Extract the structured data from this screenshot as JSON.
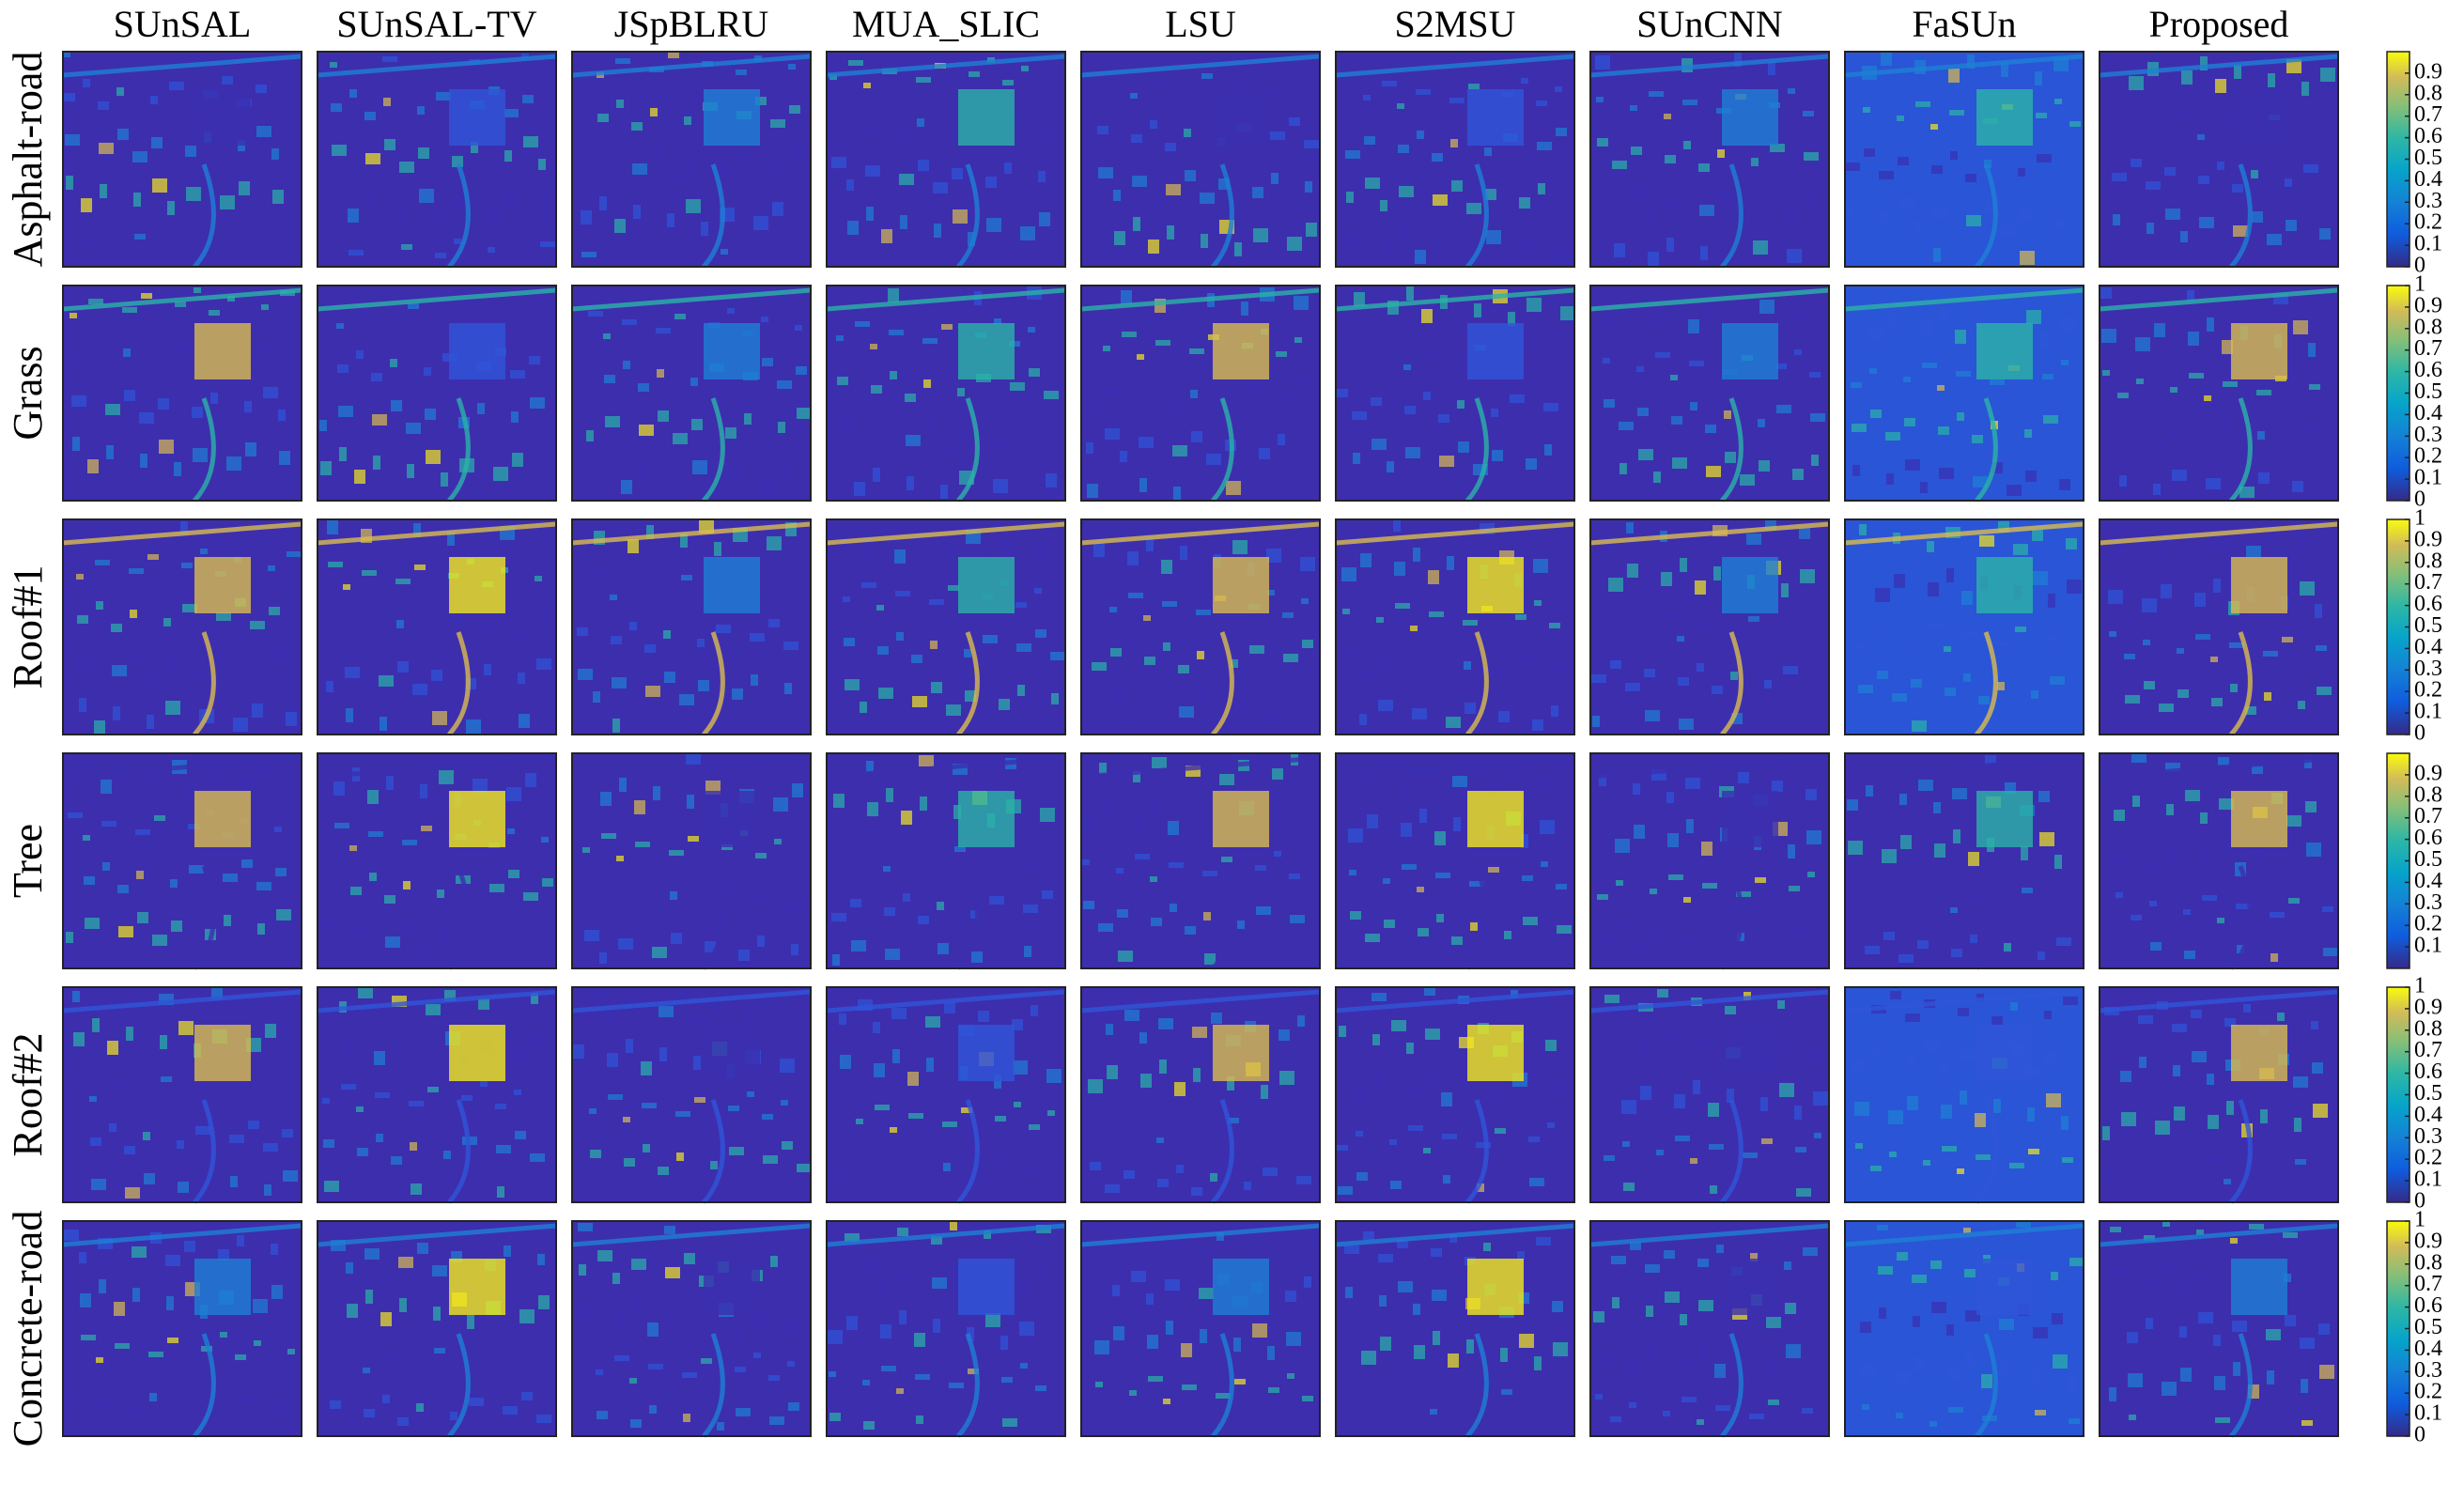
{
  "columns": [
    "SUnSAL",
    "SUnSAL-TV",
    "JSpBLRU",
    "MUA_SLIC",
    "LSU",
    "S2MSU",
    "SUnCNN",
    "FaSUn",
    "Proposed"
  ],
  "rows": [
    {
      "label": "Asphalt-road",
      "clim": [
        0,
        1
      ],
      "ticks": [
        0,
        0.1,
        0.2,
        0.3,
        0.4,
        0.5,
        0.6,
        0.7,
        0.8,
        0.9
      ]
    },
    {
      "label": "Grass",
      "clim": [
        0,
        1
      ],
      "ticks": [
        0,
        0.1,
        0.2,
        0.3,
        0.4,
        0.5,
        0.6,
        0.7,
        0.8,
        0.9,
        1
      ]
    },
    {
      "label": "Roof#1",
      "clim": [
        0,
        1
      ],
      "ticks": [
        0,
        0.1,
        0.2,
        0.3,
        0.4,
        0.5,
        0.6,
        0.7,
        0.8,
        0.9,
        1
      ]
    },
    {
      "label": "Tree",
      "clim": [
        0,
        1
      ],
      "ticks": [
        0.1,
        0.2,
        0.3,
        0.4,
        0.5,
        0.6,
        0.7,
        0.8,
        0.9
      ]
    },
    {
      "label": "Roof#2",
      "clim": [
        0,
        1
      ],
      "ticks": [
        0,
        0.1,
        0.2,
        0.3,
        0.4,
        0.5,
        0.6,
        0.7,
        0.8,
        0.9,
        1
      ]
    },
    {
      "label": "Concrete-road",
      "clim": [
        0,
        1
      ],
      "ticks": [
        0,
        0.1,
        0.2,
        0.3,
        0.4,
        0.5,
        0.6,
        0.7,
        0.8,
        0.9,
        1
      ]
    }
  ]
}
